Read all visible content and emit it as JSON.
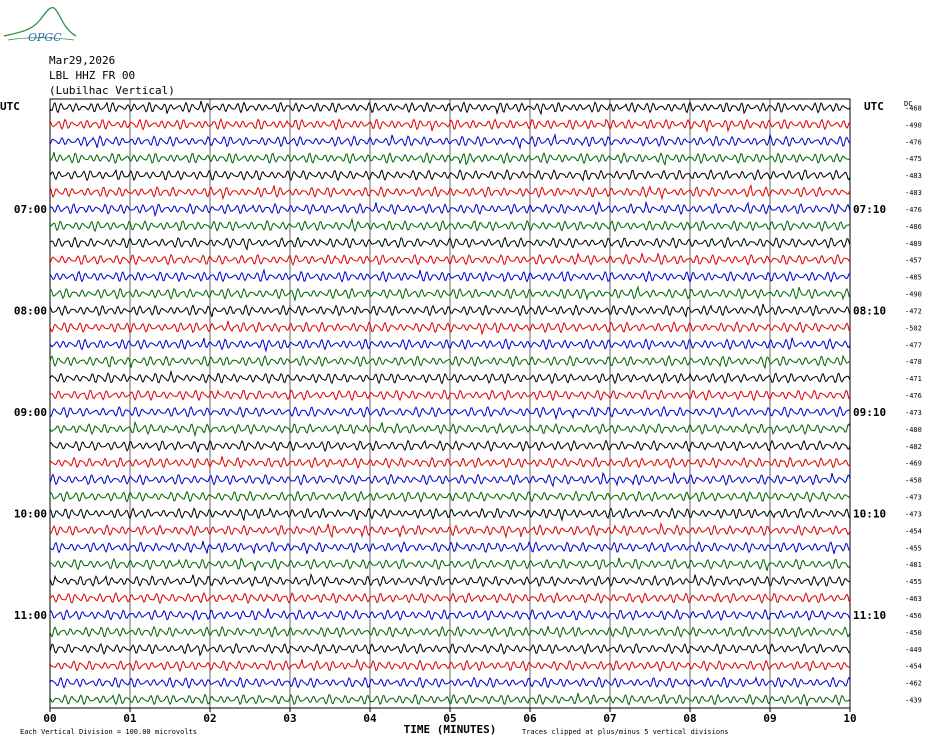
{
  "header": {
    "date": "Mar29,2026",
    "station": "LBL HHZ FR 00",
    "location": "(Lubilhac Vertical)",
    "logo_text": "OPGC"
  },
  "chart_data": {
    "type": "line",
    "xlabel": "TIME (MINUTES)",
    "x_ticks": [
      "00",
      "01",
      "02",
      "03",
      "04",
      "05",
      "06",
      "07",
      "08",
      "09",
      "10"
    ],
    "xlim": [
      0,
      10
    ],
    "left_axis_label": "UTC",
    "right_axis_label": "UTC",
    "dc_label": "DC",
    "left_hour_labels": [
      {
        "row": 6,
        "text": "07:00"
      },
      {
        "row": 12,
        "text": "08:00"
      },
      {
        "row": 18,
        "text": "09:00"
      },
      {
        "row": 24,
        "text": "10:00"
      },
      {
        "row": 30,
        "text": "11:00"
      }
    ],
    "right_hour_labels": [
      {
        "row": 6,
        "text": "07:10"
      },
      {
        "row": 12,
        "text": "08:10"
      },
      {
        "row": 18,
        "text": "09:10"
      },
      {
        "row": 24,
        "text": "10:10"
      },
      {
        "row": 30,
        "text": "11:10"
      }
    ],
    "dc_offsets": [
      -468,
      -490,
      -476,
      -475,
      -483,
      -483,
      -476,
      -486,
      -489,
      -457,
      -485,
      -490,
      -472,
      -502,
      -477,
      -478,
      -471,
      -476,
      -473,
      -480,
      -482,
      -469,
      -458,
      -473,
      -473,
      -454,
      -455,
      -481,
      -455,
      -463,
      -456,
      -450,
      -449,
      -454,
      -462,
      -439
    ],
    "trace_colors": [
      "#000000",
      "#e00000",
      "#0000d0",
      "#006400"
    ],
    "footer_left": "Each Vertical Division =  100.00 microvolts",
    "footer_right": "Traces clipped at plus/minus 5 vertical divisions",
    "grid": true
  }
}
